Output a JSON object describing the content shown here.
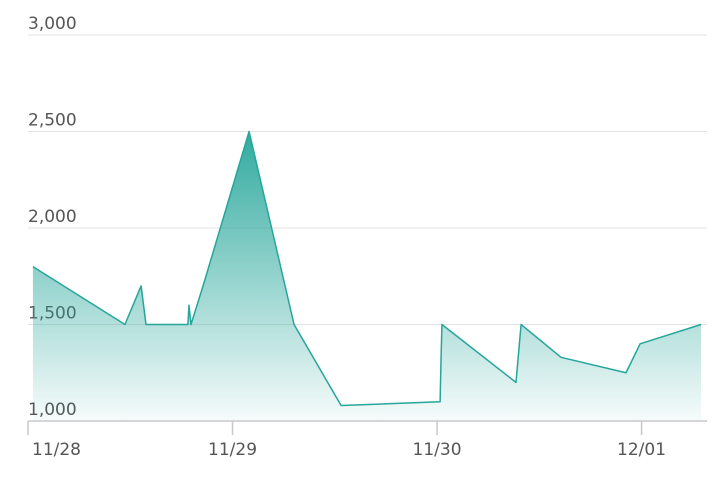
{
  "chart_data": {
    "type": "area",
    "x": [
      0.024,
      0.474,
      0.553,
      0.577,
      0.782,
      0.787,
      0.797,
      0.856,
      1.081,
      1.301,
      1.531,
      2.015,
      2.02,
      2.024,
      2.386,
      2.411,
      2.606,
      2.924,
      2.993,
      3.291
    ],
    "series": [
      {
        "color": "#26a69a",
        "values": [
          1800,
          1500,
          1700,
          1500,
          1500,
          1600,
          1500,
          1700,
          2500,
          1500,
          1080,
          1100,
          1340,
          1500,
          1200,
          1500,
          1330,
          1250,
          1400,
          1500
        ]
      }
    ],
    "xlim": [
      0,
      3.32
    ],
    "xticks": [
      {
        "value": 0,
        "label": "11/28"
      },
      {
        "value": 1,
        "label": "11/29"
      },
      {
        "value": 2,
        "label": "11/30"
      },
      {
        "value": 3,
        "label": "12/01"
      }
    ],
    "ylim": [
      1000,
      3000
    ],
    "yticks": [
      {
        "value": 1000,
        "label": "1,000"
      },
      {
        "value": 1500,
        "label": "1,500"
      },
      {
        "value": 2000,
        "label": "2,000"
      },
      {
        "value": 2500,
        "label": "2,500"
      },
      {
        "value": 3000,
        "label": "3,000"
      }
    ],
    "grid": true
  }
}
